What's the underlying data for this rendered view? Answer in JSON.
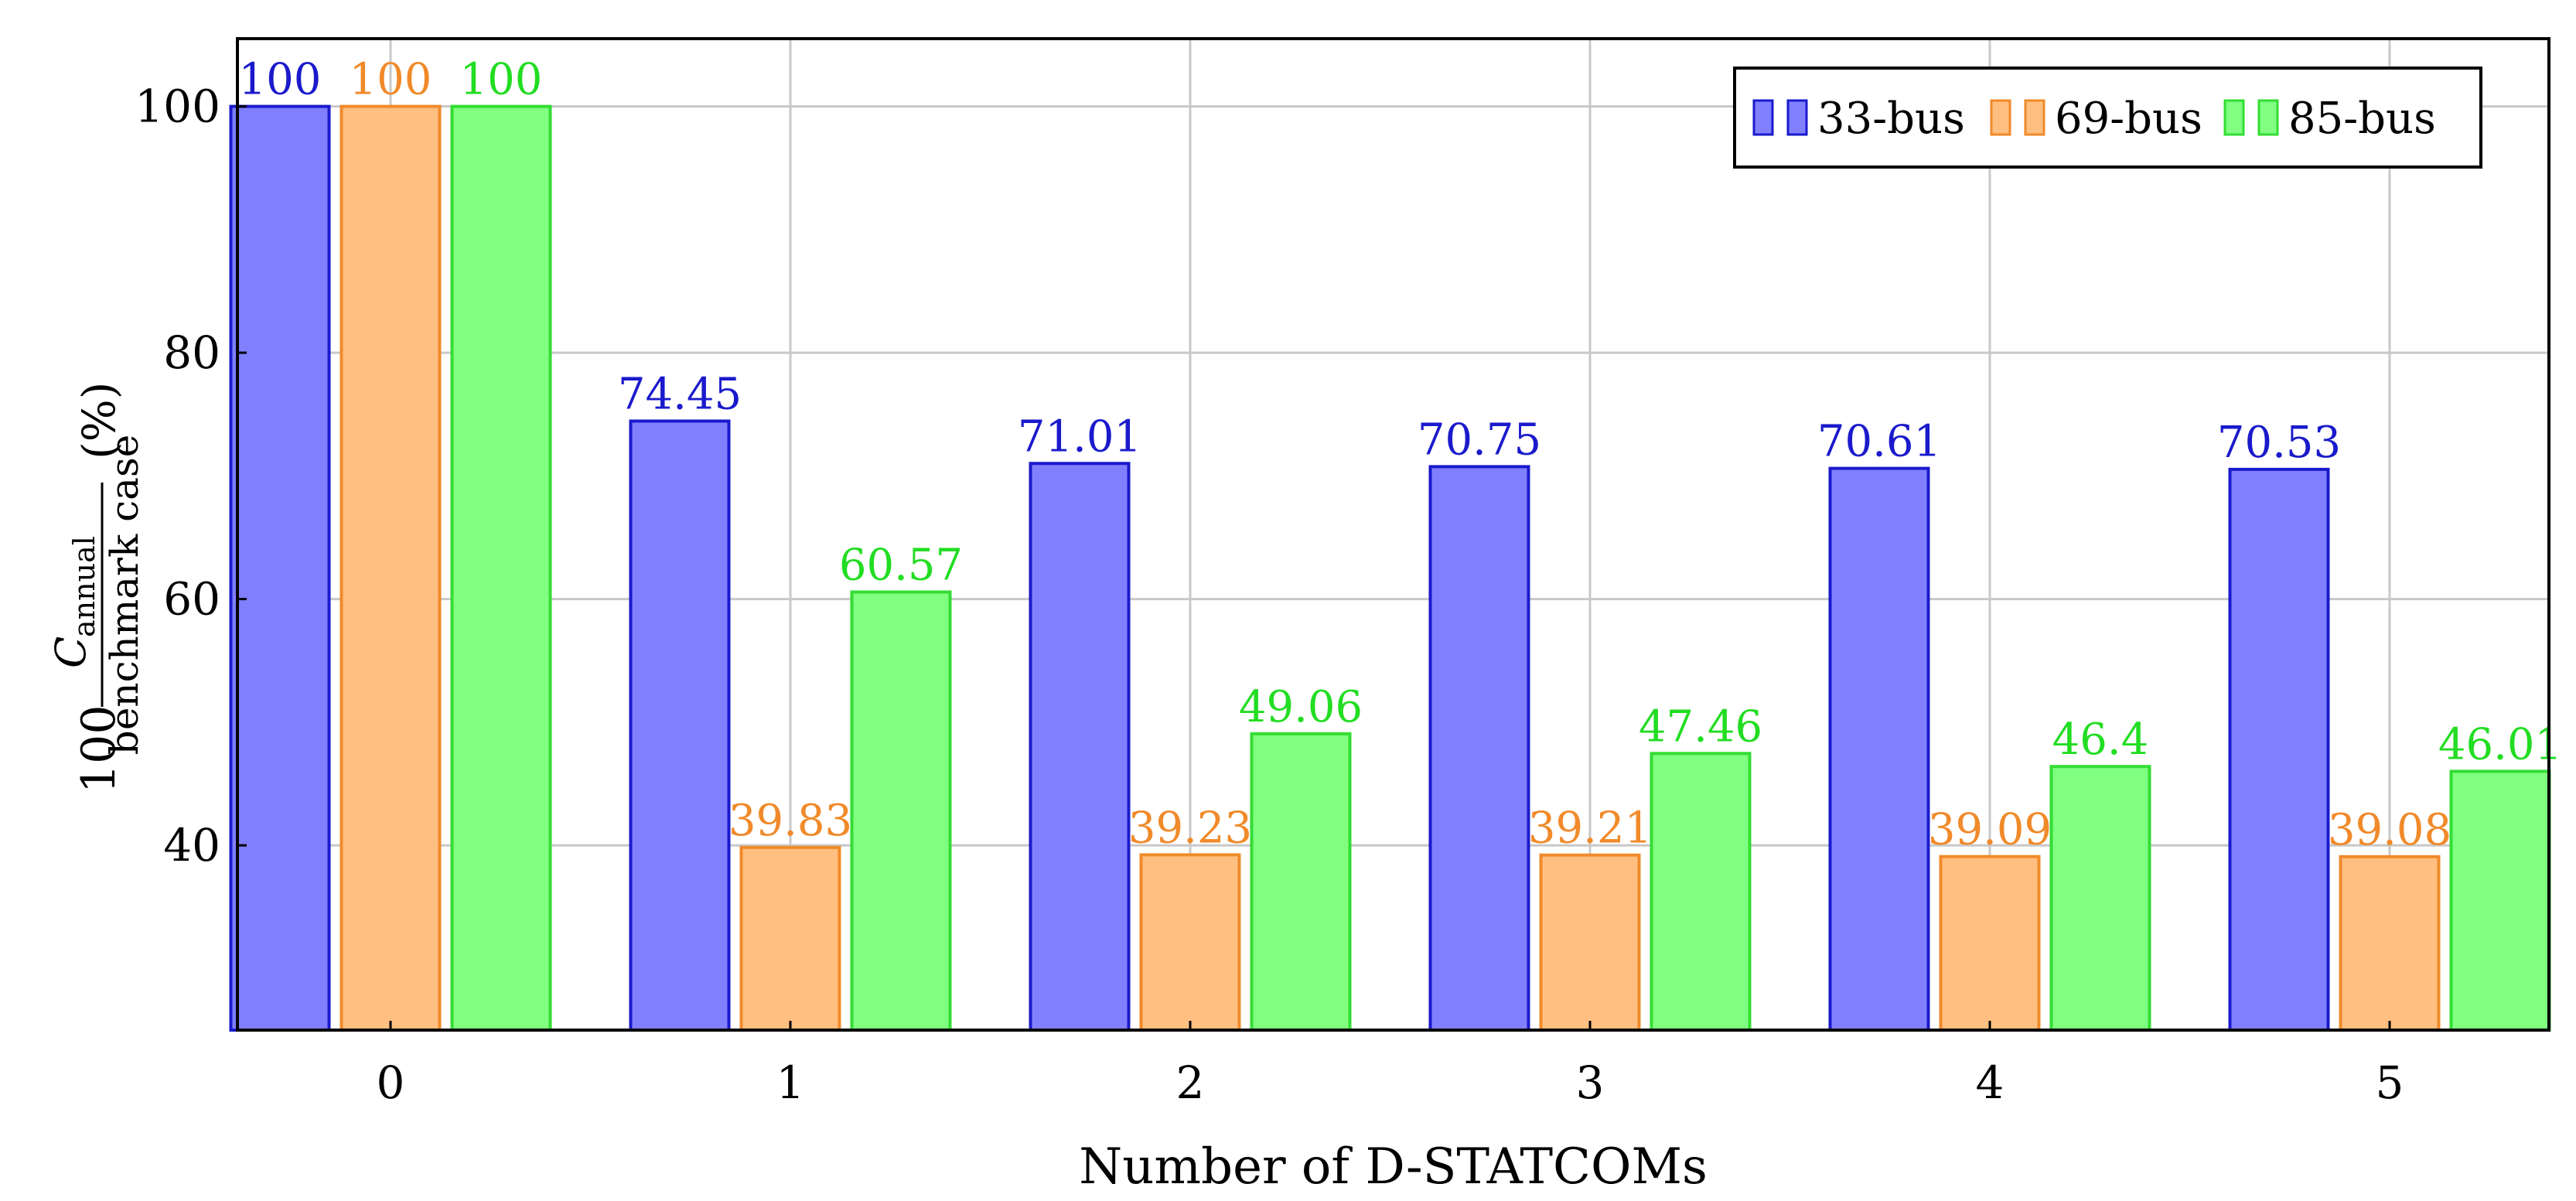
{
  "chart_data": {
    "type": "bar",
    "xlabel": "Number of D-STATCOMs",
    "ylabel": {
      "prefix": "100",
      "numerator": "C",
      "numerator_sub": "annual",
      "denominator": "benchmark case",
      "unit": "(%)"
    },
    "categories": [
      "0",
      "1",
      "2",
      "3",
      "4",
      "5"
    ],
    "series": [
      {
        "name": "33-bus",
        "values": [
          100,
          74.45,
          71.01,
          70.75,
          70.61,
          70.53
        ],
        "fill": "#8080ff",
        "stroke": "#1a1acc",
        "label_color": "#1a1acc"
      },
      {
        "name": "69-bus",
        "values": [
          100,
          39.83,
          39.23,
          39.21,
          39.09,
          39.08
        ],
        "fill": "#ffbf80",
        "stroke": "#f08a2a",
        "label_color": "#f08a2a"
      },
      {
        "name": "85-bus",
        "values": [
          100,
          60.57,
          49.06,
          47.46,
          46.4,
          46.01
        ],
        "fill": "#80ff80",
        "stroke": "#33dd33",
        "label_color": "#22dd22"
      }
    ],
    "data_labels": [
      [
        "100",
        "74.45",
        "71.01",
        "70.75",
        "70.61",
        "70.53"
      ],
      [
        "100",
        "39.83",
        "39.23",
        "39.21",
        "39.09",
        "39.08"
      ],
      [
        "100",
        "60.57",
        "49.06",
        "47.46",
        "46.4",
        "46.01"
      ]
    ],
    "yticks": [
      40,
      60,
      80,
      100
    ],
    "ylim": [
      25,
      105.5
    ],
    "grid": true,
    "legend_position": "top-right"
  }
}
